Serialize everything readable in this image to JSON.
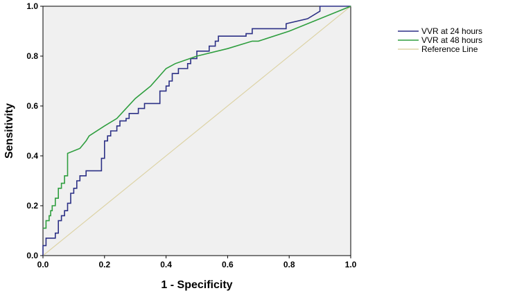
{
  "chart_data": {
    "type": "line",
    "xlabel": "1 - Specificity",
    "ylabel": "Sensitivity",
    "xlim": [
      0,
      1
    ],
    "ylim": [
      0,
      1
    ],
    "x_ticks": [
      "0.0",
      "0.2",
      "0.4",
      "0.6",
      "0.8",
      "1.0"
    ],
    "y_ticks": [
      "0.0",
      "0.2",
      "0.4",
      "0.6",
      "0.8",
      "1.0"
    ],
    "grid": false,
    "legend_position": "right",
    "series": [
      {
        "name": "VVR at 24 hours",
        "color": "#2b2f85",
        "points": [
          [
            0.0,
            0.0
          ],
          [
            0.0,
            0.04
          ],
          [
            0.01,
            0.04
          ],
          [
            0.01,
            0.07
          ],
          [
            0.04,
            0.07
          ],
          [
            0.04,
            0.09
          ],
          [
            0.05,
            0.09
          ],
          [
            0.05,
            0.14
          ],
          [
            0.06,
            0.14
          ],
          [
            0.06,
            0.16
          ],
          [
            0.07,
            0.16
          ],
          [
            0.07,
            0.18
          ],
          [
            0.08,
            0.18
          ],
          [
            0.08,
            0.21
          ],
          [
            0.09,
            0.21
          ],
          [
            0.09,
            0.25
          ],
          [
            0.1,
            0.25
          ],
          [
            0.1,
            0.27
          ],
          [
            0.11,
            0.27
          ],
          [
            0.11,
            0.3
          ],
          [
            0.12,
            0.3
          ],
          [
            0.12,
            0.32
          ],
          [
            0.14,
            0.32
          ],
          [
            0.14,
            0.34
          ],
          [
            0.19,
            0.34
          ],
          [
            0.19,
            0.39
          ],
          [
            0.2,
            0.39
          ],
          [
            0.2,
            0.46
          ],
          [
            0.21,
            0.46
          ],
          [
            0.21,
            0.48
          ],
          [
            0.22,
            0.48
          ],
          [
            0.22,
            0.5
          ],
          [
            0.24,
            0.5
          ],
          [
            0.24,
            0.52
          ],
          [
            0.25,
            0.52
          ],
          [
            0.25,
            0.54
          ],
          [
            0.27,
            0.54
          ],
          [
            0.27,
            0.55
          ],
          [
            0.28,
            0.55
          ],
          [
            0.28,
            0.57
          ],
          [
            0.31,
            0.57
          ],
          [
            0.31,
            0.59
          ],
          [
            0.33,
            0.59
          ],
          [
            0.33,
            0.61
          ],
          [
            0.38,
            0.61
          ],
          [
            0.38,
            0.66
          ],
          [
            0.4,
            0.66
          ],
          [
            0.4,
            0.68
          ],
          [
            0.41,
            0.68
          ],
          [
            0.41,
            0.7
          ],
          [
            0.42,
            0.7
          ],
          [
            0.42,
            0.73
          ],
          [
            0.44,
            0.73
          ],
          [
            0.44,
            0.75
          ],
          [
            0.47,
            0.75
          ],
          [
            0.47,
            0.77
          ],
          [
            0.48,
            0.77
          ],
          [
            0.48,
            0.79
          ],
          [
            0.5,
            0.79
          ],
          [
            0.5,
            0.82
          ],
          [
            0.54,
            0.82
          ],
          [
            0.54,
            0.84
          ],
          [
            0.56,
            0.84
          ],
          [
            0.56,
            0.86
          ],
          [
            0.57,
            0.86
          ],
          [
            0.57,
            0.88
          ],
          [
            0.66,
            0.88
          ],
          [
            0.66,
            0.89
          ],
          [
            0.68,
            0.89
          ],
          [
            0.68,
            0.91
          ],
          [
            0.79,
            0.91
          ],
          [
            0.79,
            0.93
          ],
          [
            0.86,
            0.95
          ],
          [
            0.9,
            0.98
          ],
          [
            0.9,
            1.0
          ],
          [
            1.0,
            1.0
          ]
        ]
      },
      {
        "name": "VVR at 48 hours",
        "color": "#2e9e3e",
        "points": [
          [
            0.0,
            0.11
          ],
          [
            0.01,
            0.11
          ],
          [
            0.01,
            0.14
          ],
          [
            0.02,
            0.14
          ],
          [
            0.02,
            0.16
          ],
          [
            0.025,
            0.16
          ],
          [
            0.025,
            0.18
          ],
          [
            0.03,
            0.18
          ],
          [
            0.03,
            0.2
          ],
          [
            0.04,
            0.2
          ],
          [
            0.04,
            0.23
          ],
          [
            0.05,
            0.23
          ],
          [
            0.05,
            0.27
          ],
          [
            0.06,
            0.27
          ],
          [
            0.06,
            0.29
          ],
          [
            0.07,
            0.29
          ],
          [
            0.07,
            0.32
          ],
          [
            0.08,
            0.32
          ],
          [
            0.08,
            0.41
          ],
          [
            0.12,
            0.43
          ],
          [
            0.14,
            0.46
          ],
          [
            0.15,
            0.48
          ],
          [
            0.2,
            0.52
          ],
          [
            0.24,
            0.55
          ],
          [
            0.27,
            0.59
          ],
          [
            0.3,
            0.63
          ],
          [
            0.35,
            0.68
          ],
          [
            0.4,
            0.75
          ],
          [
            0.43,
            0.77
          ],
          [
            0.5,
            0.8
          ],
          [
            0.6,
            0.83
          ],
          [
            0.68,
            0.86
          ],
          [
            0.7,
            0.86
          ],
          [
            0.8,
            0.9
          ],
          [
            0.9,
            0.95
          ],
          [
            1.0,
            1.0
          ]
        ]
      },
      {
        "name": "Reference Line",
        "color": "#ddd3a6",
        "points": [
          [
            0.0,
            0.0
          ],
          [
            1.0,
            1.0
          ]
        ]
      }
    ]
  }
}
